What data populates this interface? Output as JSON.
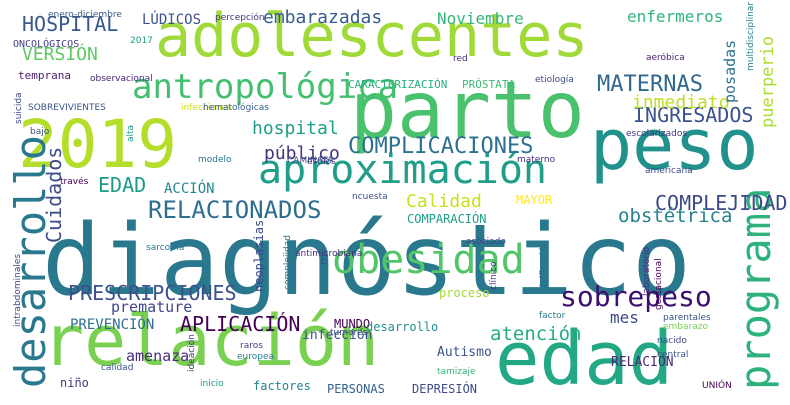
{
  "words": [
    {
      "text": "diagnóstico",
      "color": "#2a788e"
    },
    {
      "text": "adolescentes",
      "color": "#a0da39"
    },
    {
      "text": "parto",
      "color": "#4ac16d"
    },
    {
      "text": "relación",
      "color": "#7ad151"
    },
    {
      "text": "edad",
      "color": "#22a884"
    },
    {
      "text": "peso",
      "color": "#21918c"
    },
    {
      "text": "2019",
      "color": "#b5de2b"
    },
    {
      "text": "aproximación",
      "color": "#1f9e89"
    },
    {
      "text": "antropológica",
      "color": "#44bf70"
    },
    {
      "text": "desarrollo",
      "color": "#2a788e"
    },
    {
      "text": "programa",
      "color": "#2db27d"
    },
    {
      "text": "obesidad",
      "color": "#52c569"
    },
    {
      "text": "sobrepeso",
      "color": "#3b0f70"
    },
    {
      "text": "RELACIONADOS",
      "color": "#2e6e8e"
    },
    {
      "text": "COMPLICACIONES",
      "color": "#2c728e"
    },
    {
      "text": "PRESCRIPCIONES",
      "color": "#3b518b"
    },
    {
      "text": "APLICACIÓN",
      "color": "#440154"
    },
    {
      "text": "MATERNAS",
      "color": "#31688e"
    },
    {
      "text": "INGRESADOS",
      "color": "#3b528b"
    },
    {
      "text": "COMPLEJIDAD",
      "color": "#3e4989"
    },
    {
      "text": "embarazadas",
      "color": "#365c8d"
    },
    {
      "text": "hospital",
      "color": "#1f9e89"
    },
    {
      "text": "inmediato",
      "color": "#bddf26"
    },
    {
      "text": "obstétrica",
      "color": "#26828e"
    },
    {
      "text": "atención",
      "color": "#25ab82"
    },
    {
      "text": "Calidad",
      "color": "#c8e020"
    },
    {
      "text": "EDAD",
      "color": "#1e9c89"
    },
    {
      "text": "Cuidados",
      "color": "#3e4c8a"
    },
    {
      "text": "público",
      "color": "#46337f"
    },
    {
      "text": "HOSPITAL",
      "color": "#38588c"
    },
    {
      "text": "VERSIÓN",
      "color": "#5ec962"
    },
    {
      "text": "Noviembre",
      "color": "#35b779"
    },
    {
      "text": "enfermeros",
      "color": "#2fb47c"
    },
    {
      "text": "posadas",
      "color": "#2c728e"
    },
    {
      "text": "puerperio",
      "color": "#addc30"
    },
    {
      "text": "premature",
      "color": "#3f4889"
    },
    {
      "text": "mes",
      "color": "#3e4a89"
    },
    {
      "text": "amenaza",
      "color": "#472d7b"
    },
    {
      "text": "PREVENCIÓN",
      "color": "#2e6f8e"
    },
    {
      "text": "ACCIÓN",
      "color": "#24878e"
    },
    {
      "text": "MAYOR",
      "color": "#fde725"
    },
    {
      "text": "COMPARACIÓN",
      "color": "#1f9e89"
    },
    {
      "text": "LÚDICOS",
      "color": "#3b528b"
    },
    {
      "text": "CARACTERIZACIÓN",
      "color": "#29af7f"
    },
    {
      "text": "PRÓSTATA",
      "color": "#3dbc74"
    },
    {
      "text": "MUNDO",
      "color": "#440154"
    },
    {
      "text": "infección",
      "color": "#3b528b"
    },
    {
      "text": "desarrollo",
      "color": "#21918c"
    },
    {
      "text": "proceso",
      "color": "#a2da37"
    },
    {
      "text": "neoplasias",
      "color": "#404688"
    },
    {
      "text": "Autismo",
      "color": "#3b528b"
    },
    {
      "text": "RELACIÓN",
      "color": "#482878"
    },
    {
      "text": "factores",
      "color": "#26828e"
    },
    {
      "text": "PERSONAS",
      "color": "#33628d"
    },
    {
      "text": "DEPRESIÓN",
      "color": "#3e4c8a"
    },
    {
      "text": "niño",
      "color": "#443983"
    },
    {
      "text": "temprana",
      "color": "#481a6c"
    },
    {
      "text": "ONCOLÓGICOS",
      "color": "#433e85"
    },
    {
      "text": "enero-diciembre",
      "color": "#365d8d"
    },
    {
      "text": "percepción",
      "color": "#453781"
    },
    {
      "text": "2017",
      "color": "#1f9e89"
    },
    {
      "text": "observacional",
      "color": "#482475"
    },
    {
      "text": "SOBREVIVIENTES",
      "color": "#3b528b"
    },
    {
      "text": "infecciones",
      "color": "#cde11d"
    },
    {
      "text": "hematológicas",
      "color": "#365c8d"
    },
    {
      "text": "suicida",
      "color": "#3f4788"
    },
    {
      "text": "bajo",
      "color": "#3b528b"
    },
    {
      "text": "alta",
      "color": "#1f9a8a"
    },
    {
      "text": "modelo",
      "color": "#2c738e"
    },
    {
      "text": "CAMINATA",
      "color": "#3e4c8a"
    },
    {
      "text": "estilos",
      "color": "#404688"
    },
    {
      "text": "materno",
      "color": "#472d7b"
    },
    {
      "text": "red",
      "color": "#482878"
    },
    {
      "text": "etiología",
      "color": "#3e4989"
    },
    {
      "text": "aeróbica",
      "color": "#482475"
    },
    {
      "text": "multidisciplinar",
      "color": "#26828e"
    },
    {
      "text": "escolarizados",
      "color": "#46337f"
    },
    {
      "text": "americana",
      "color": "#3e4989"
    },
    {
      "text": "través",
      "color": "#440154"
    },
    {
      "text": "ncuesta",
      "color": "#3b528b"
    },
    {
      "text": "sarcoma",
      "color": "#2a788e"
    },
    {
      "text": "intrabdominales",
      "color": "#3e4a89"
    },
    {
      "text": "antimicrobiana",
      "color": "#472d7b"
    },
    {
      "text": "asociado",
      "color": "#414487"
    },
    {
      "text": "tipificación",
      "color": "#2c728e"
    },
    {
      "text": "clínico",
      "color": "#46337f"
    },
    {
      "text": "laboratorio",
      "color": "#482878"
    },
    {
      "text": "gestacional",
      "color": "#440154"
    },
    {
      "text": "parentales",
      "color": "#3b528b"
    },
    {
      "text": "factor",
      "color": "#2a788e"
    },
    {
      "text": "embarazo",
      "color": "#7ad151"
    },
    {
      "text": "nacido",
      "color": "#3e4989"
    },
    {
      "text": "central",
      "color": "#3b528b"
    },
    {
      "text": "complejidad",
      "color": "#2c728e"
    },
    {
      "text": "tumores",
      "color": "#3e4c8a"
    },
    {
      "text": "raros",
      "color": "#414487"
    },
    {
      "text": "europea",
      "color": "#26828e"
    },
    {
      "text": "tamizaje",
      "color": "#35b779"
    },
    {
      "text": "calidad",
      "color": "#3b528b"
    },
    {
      "text": "ideación",
      "color": "#46337f"
    },
    {
      "text": "inicio",
      "color": "#1f9e89"
    },
    {
      "text": "UNIÓN",
      "color": "#440154"
    },
    {
      "text": "E",
      "color": "#3b528b"
    }
  ]
}
